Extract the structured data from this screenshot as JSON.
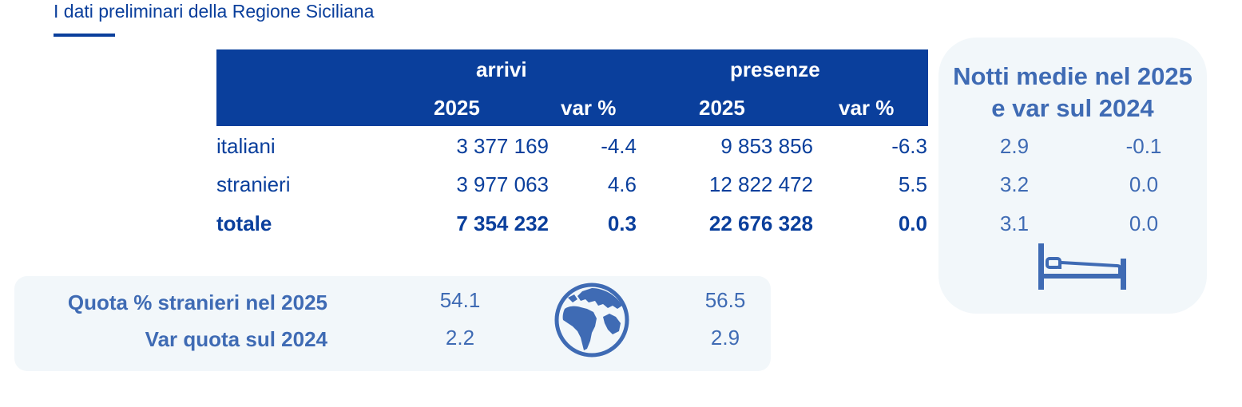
{
  "subtitle": "I dati preliminari della Regione Siciliana",
  "table": {
    "group_arrivi": "arrivi",
    "group_presenze": "presenze",
    "col_year_1": "2025",
    "col_var_1": "var %",
    "col_year_2": "2025",
    "col_var_2": "var %",
    "rows": [
      {
        "label": "italiani",
        "arrivi": "3 377 169",
        "arrivi_var": "-4.4",
        "presenze": "9 853 856",
        "presenze_var": "-6.3"
      },
      {
        "label": "stranieri",
        "arrivi": "3 977 063",
        "arrivi_var": "4.6",
        "presenze": "12 822 472",
        "presenze_var": "5.5"
      },
      {
        "label": "totale",
        "arrivi": "7 354 232",
        "arrivi_var": "0.3",
        "presenze": "22 676 328",
        "presenze_var": "0.0"
      }
    ]
  },
  "nights": {
    "title_line1": "Notti medie nel 2025",
    "title_line2": "e var sul 2024",
    "rows": [
      {
        "avg": "2.9",
        "var": "-0.1"
      },
      {
        "avg": "3.2",
        "var": "0.0"
      },
      {
        "avg": "3.1",
        "var": "0.0"
      }
    ],
    "icon": "bed-icon"
  },
  "quota": {
    "label_share": "Quota % stranieri nel 2025",
    "label_var": "Var quota sul 2024",
    "arrivi_share": "54.1",
    "arrivi_var": "2.2",
    "presenze_share": "56.5",
    "presenze_var": "2.9",
    "icon": "globe-icon"
  },
  "colors": {
    "primary": "#0a3f9c",
    "secondary": "#3f6bb4",
    "panel": "#f2f7fa"
  }
}
